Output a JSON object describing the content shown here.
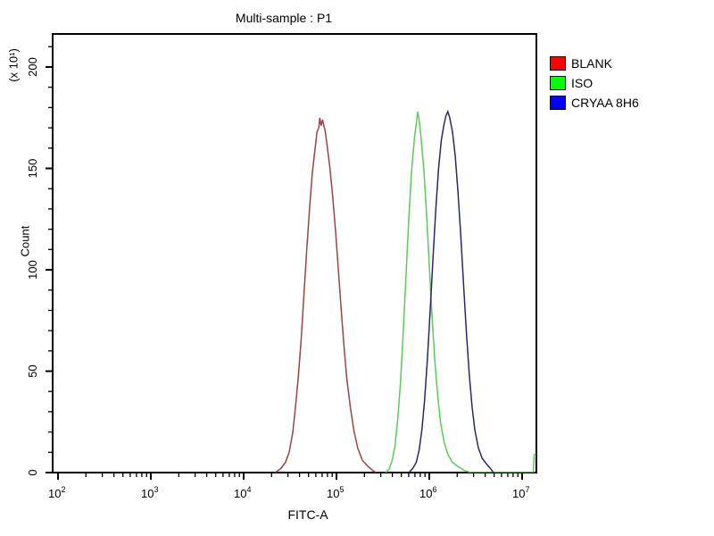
{
  "title": "Multi-sample : P1",
  "chart_data": {
    "type": "line",
    "subtype": "flow-cytometry-overlay-histogram",
    "title": "Multi-sample : P1",
    "xlabel": "FITC-A",
    "ylabel": "Count",
    "y_unit_label": "(x 10¹)",
    "x_scale": "log10",
    "x_log_range": [
      1.94,
      7.15
    ],
    "x_decade_exponents": [
      2,
      3,
      4,
      5,
      6,
      7
    ],
    "ylim": [
      0,
      216
    ],
    "y_major_ticks": [
      0,
      50,
      100,
      150,
      200
    ],
    "y_minor_step": 10,
    "grid": false,
    "legend_position": "right-outside",
    "axis_color": "#000000",
    "background_color": "#ffffff",
    "series": [
      {
        "name": "BLANK",
        "curve_color": "#9b4540",
        "legend_color": "#ff0000",
        "peak": {
          "x": 66000,
          "count": 175
        },
        "points_log_count": [
          [
            4.34,
            0
          ],
          [
            4.4,
            2
          ],
          [
            4.45,
            5
          ],
          [
            4.49,
            10
          ],
          [
            4.53,
            20
          ],
          [
            4.56,
            33
          ],
          [
            4.59,
            48
          ],
          [
            4.62,
            66
          ],
          [
            4.65,
            88
          ],
          [
            4.68,
            110
          ],
          [
            4.71,
            130
          ],
          [
            4.74,
            148
          ],
          [
            4.77,
            160
          ],
          [
            4.79,
            168
          ],
          [
            4.81,
            170
          ],
          [
            4.82,
            175
          ],
          [
            4.835,
            171
          ],
          [
            4.85,
            174
          ],
          [
            4.88,
            168
          ],
          [
            4.9,
            161
          ],
          [
            4.93,
            150
          ],
          [
            4.96,
            136
          ],
          [
            4.99,
            119
          ],
          [
            5.02,
            100
          ],
          [
            5.05,
            81
          ],
          [
            5.08,
            63
          ],
          [
            5.11,
            47
          ],
          [
            5.15,
            32
          ],
          [
            5.19,
            20
          ],
          [
            5.23,
            12
          ],
          [
            5.28,
            6
          ],
          [
            5.34,
            3
          ],
          [
            5.39,
            1
          ],
          [
            5.43,
            0
          ]
        ]
      },
      {
        "name": "ISO",
        "curve_color": "#58cd58",
        "legend_color": "#00ff00",
        "peak": {
          "x": 750000,
          "count": 178
        },
        "points_log_count": [
          [
            5.53,
            0
          ],
          [
            5.57,
            2
          ],
          [
            5.6,
            6
          ],
          [
            5.63,
            13
          ],
          [
            5.66,
            26
          ],
          [
            5.69,
            45
          ],
          [
            5.72,
            70
          ],
          [
            5.75,
            98
          ],
          [
            5.78,
            126
          ],
          [
            5.81,
            149
          ],
          [
            5.84,
            165
          ],
          [
            5.86,
            172
          ],
          [
            5.875,
            178
          ],
          [
            5.89,
            174
          ],
          [
            5.91,
            166
          ],
          [
            5.94,
            150
          ],
          [
            5.97,
            128
          ],
          [
            6.0,
            102
          ],
          [
            6.03,
            77
          ],
          [
            6.06,
            55
          ],
          [
            6.09,
            38
          ],
          [
            6.12,
            25
          ],
          [
            6.16,
            15
          ],
          [
            6.2,
            9
          ],
          [
            6.25,
            5
          ],
          [
            6.31,
            3
          ],
          [
            6.38,
            1
          ],
          [
            6.45,
            0
          ],
          [
            7.12,
            0
          ],
          [
            7.13,
            9
          ],
          [
            7.15,
            9
          ]
        ]
      },
      {
        "name": "CRYAA 8H6",
        "curve_color": "#28286e",
        "legend_color": "#0000ff",
        "peak": {
          "x": 1600000,
          "count": 178
        },
        "points_log_count": [
          [
            5.78,
            0
          ],
          [
            5.82,
            2
          ],
          [
            5.86,
            5
          ],
          [
            5.89,
            11
          ],
          [
            5.92,
            21
          ],
          [
            5.95,
            36
          ],
          [
            5.98,
            56
          ],
          [
            6.01,
            80
          ],
          [
            6.04,
            106
          ],
          [
            6.07,
            130
          ],
          [
            6.1,
            150
          ],
          [
            6.13,
            164
          ],
          [
            6.16,
            172
          ],
          [
            6.18,
            176
          ],
          [
            6.2,
            178
          ],
          [
            6.22,
            175
          ],
          [
            6.25,
            168
          ],
          [
            6.28,
            156
          ],
          [
            6.31,
            138
          ],
          [
            6.34,
            116
          ],
          [
            6.37,
            92
          ],
          [
            6.4,
            69
          ],
          [
            6.43,
            49
          ],
          [
            6.46,
            33
          ],
          [
            6.49,
            21
          ],
          [
            6.53,
            12
          ],
          [
            6.57,
            7
          ],
          [
            6.62,
            4
          ],
          [
            6.66,
            2
          ],
          [
            6.69,
            0
          ]
        ]
      }
    ]
  }
}
